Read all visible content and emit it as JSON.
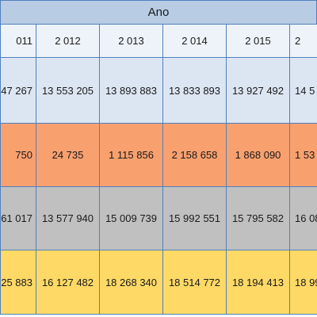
{
  "header": {
    "title": "Ano"
  },
  "table": {
    "columns": [
      "011",
      "2 012",
      "2 013",
      "2 014",
      "2 015",
      "2"
    ],
    "rows": [
      [
        "47 267",
        "13 553 205",
        "13 893 883",
        "13 833 893",
        "13 927 492",
        "14 5"
      ],
      [
        "750",
        "24 735",
        "1 115 856",
        "2 158 658",
        "1 868 090",
        "1 53"
      ],
      [
        "61 017",
        "13 577 940",
        "15 009 739",
        "15 992 551",
        "15 795 582",
        "16 08"
      ],
      [
        "25 883",
        "16 127 482",
        "18 268 340",
        "18 514 772",
        "18 194 413",
        "18 99"
      ]
    ]
  }
}
